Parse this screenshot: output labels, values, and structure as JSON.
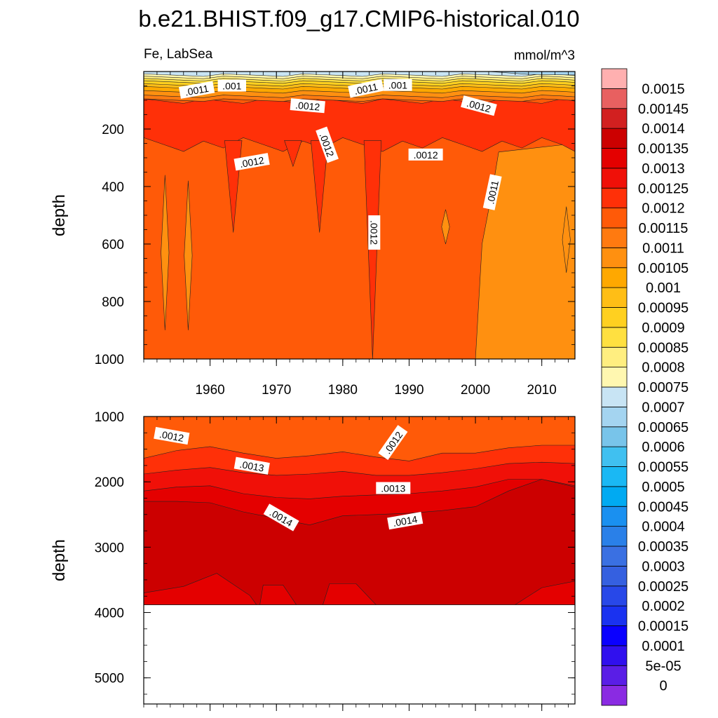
{
  "chart_data": {
    "type": "contour",
    "title": "b.e21.BHIST.f09_g17.CMIP6-historical.010",
    "left_label": "Fe, LabSea",
    "right_label": "mmol/m^3",
    "colorbar": {
      "levels": [
        "0",
        "5e-05",
        "0.0001",
        "0.00015",
        "0.0002",
        "0.00025",
        "0.0003",
        "0.00035",
        "0.0004",
        "0.00045",
        "0.0005",
        "0.00055",
        "0.0006",
        "0.00065",
        "0.0007",
        "0.00075",
        "0.0008",
        "0.00085",
        "0.0009",
        "0.00095",
        "0.001",
        "0.00105",
        "0.0011",
        "0.00115",
        "0.0012",
        "0.00125",
        "0.0013",
        "0.00135",
        "0.0014",
        "0.00145",
        "0.0015"
      ],
      "colors": [
        "#8a2be2",
        "#5a1ee6",
        "#3010ee",
        "#0a00ff",
        "#1a32f0",
        "#2848e8",
        "#3560e0",
        "#3a70e2",
        "#2a80e8",
        "#1a90f0",
        "#00aaf2",
        "#1ab8f4",
        "#40c0f0",
        "#78c4ea",
        "#a4d4f0",
        "#c8e4f4",
        "#fff7b0",
        "#ffee80",
        "#ffe040",
        "#ffd020",
        "#ffbe16",
        "#ffa800",
        "#ff9010",
        "#ff7a10",
        "#ff5a08",
        "#ff3008",
        "#f01008",
        "#e40000",
        "#cc0000",
        "#d22020",
        "#e86060",
        "#ffb0b0"
      ]
    },
    "panels": [
      {
        "name": "upper",
        "ylabel": "depth",
        "ylim": [
          1000,
          0
        ],
        "y_ticks": [
          200,
          400,
          600,
          800,
          1000
        ],
        "xlim": [
          1950,
          2015
        ],
        "x_ticks": [
          1960,
          1970,
          1980,
          1990,
          2000,
          2010
        ],
        "x_tick_labels": [
          "1960",
          "1970",
          "1980",
          "1990",
          "2000",
          "2010"
        ],
        "contour_labels": [
          {
            "text": ".0011",
            "x": 1958,
            "y": 65,
            "angle": -10
          },
          {
            "text": ".001",
            "x": 1963.3,
            "y": 50,
            "angle": 0
          },
          {
            "text": ".0012",
            "x": 1974.7,
            "y": 120,
            "angle": 5
          },
          {
            "text": ".0011",
            "x": 1983.5,
            "y": 60,
            "angle": -12
          },
          {
            "text": ".001",
            "x": 1988.3,
            "y": 48,
            "angle": 0
          },
          {
            "text": ".0012",
            "x": 2000.5,
            "y": 120,
            "angle": 15
          },
          {
            "text": ".0012",
            "x": 1977.6,
            "y": 255,
            "angle": 70
          },
          {
            "text": ".0012",
            "x": 1966.3,
            "y": 315,
            "angle": -10
          },
          {
            "text": ".0012",
            "x": 1992.5,
            "y": 290,
            "angle": 0
          },
          {
            "text": ".0011",
            "x": 2002.6,
            "y": 420,
            "angle": -78
          },
          {
            "text": ".0012",
            "x": 1984.7,
            "y": 560,
            "angle": 90
          }
        ]
      },
      {
        "name": "lower",
        "ylabel": "depth",
        "ylim": [
          5400,
          1000
        ],
        "y_ticks": [
          1000,
          2000,
          3000,
          4000,
          5000
        ],
        "xlim": [
          1950,
          2015
        ],
        "x_ticks": [
          1960,
          1970,
          1980,
          1990,
          2000,
          2010
        ],
        "contour_labels": [
          {
            "text": ".0012",
            "x": 1954.2,
            "y": 1300,
            "angle": 10
          },
          {
            "text": ".0013",
            "x": 1966.3,
            "y": 1760,
            "angle": 10
          },
          {
            "text": ".0012",
            "x": 1987.6,
            "y": 1400,
            "angle": -55
          },
          {
            "text": ".0013",
            "x": 1987.6,
            "y": 2100,
            "angle": 0
          },
          {
            "text": ".0014",
            "x": 1970.7,
            "y": 2550,
            "angle": 30
          },
          {
            "text": ".0014",
            "x": 1989.4,
            "y": 2600,
            "angle": -10
          }
        ]
      }
    ]
  }
}
